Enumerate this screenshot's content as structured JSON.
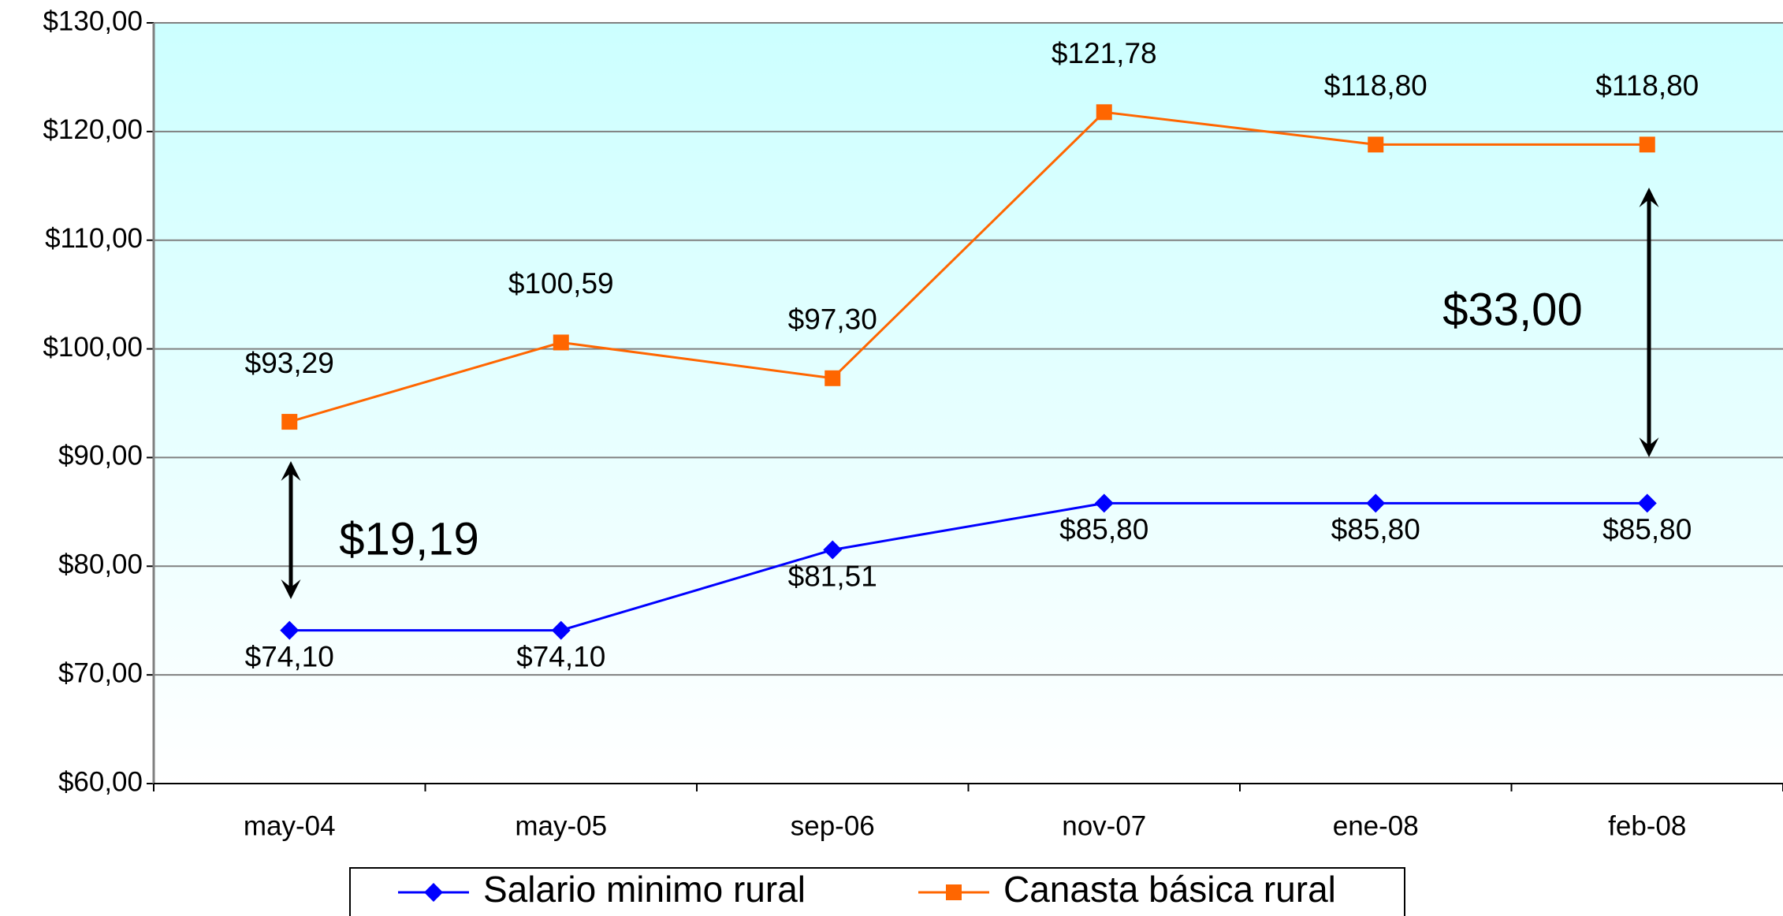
{
  "chart_data": {
    "type": "line",
    "categories": [
      "may-04",
      "may-05",
      "sep-06",
      "nov-07",
      "ene-08",
      "feb-08"
    ],
    "series": [
      {
        "name": "Salario minimo rural",
        "color": "#0000ff",
        "marker": "diamond",
        "values": [
          74.1,
          74.1,
          81.51,
          85.8,
          85.8,
          85.8
        ],
        "value_labels": [
          "$74,10",
          "$74,10",
          "$81,51",
          "$85,80",
          "$85,80",
          "$85,80"
        ]
      },
      {
        "name": "Canasta básica rural",
        "color": "#ff6600",
        "marker": "square",
        "values": [
          93.29,
          100.59,
          97.3,
          121.78,
          118.8,
          118.8
        ],
        "value_labels": [
          "$93,29",
          "$100,59",
          "$97,30",
          "$121,78",
          "$118,80",
          "$118,80"
        ]
      }
    ],
    "ylim": [
      60,
      130
    ],
    "yticks": [
      {
        "value": 60,
        "label": "$60,00"
      },
      {
        "value": 70,
        "label": "$70,00"
      },
      {
        "value": 80,
        "label": "$80,00"
      },
      {
        "value": 90,
        "label": "$90,00"
      },
      {
        "value": 100,
        "label": "$100,00"
      },
      {
        "value": 110,
        "label": "$110,00"
      },
      {
        "value": 120,
        "label": "$120,00"
      },
      {
        "value": 130,
        "label": "$130,00"
      }
    ],
    "grid": true,
    "legend": "bottom",
    "annotations": [
      {
        "text": "$19,19"
      },
      {
        "text": "$33,00"
      }
    ]
  }
}
